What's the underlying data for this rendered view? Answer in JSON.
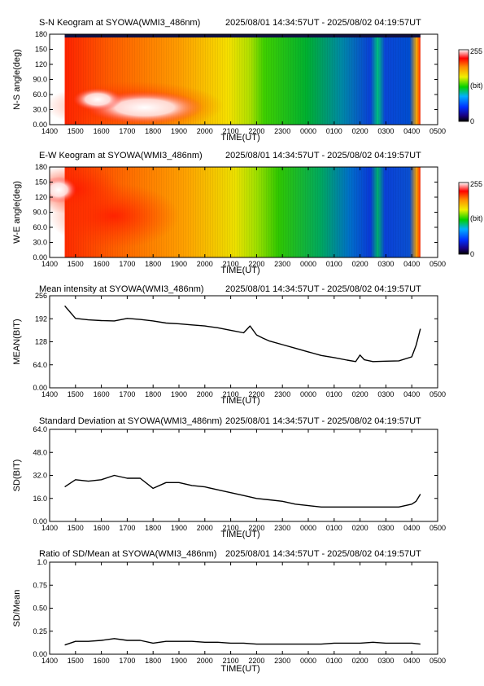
{
  "chart_data": [
    {
      "type": "heatmap",
      "title": "S-N Keogram at SYOWA(WMI3_486nm)",
      "time_range": "2025/08/01 14:34:57UT - 2025/08/02 04:19:57UT",
      "xlabel": "TIME(UT)",
      "ylabel": "N-S angle(deg)",
      "xticks": [
        "1400",
        "1500",
        "1600",
        "1700",
        "1800",
        "1900",
        "2000",
        "2100",
        "2200",
        "2300",
        "0000",
        "0100",
        "0200",
        "0300",
        "0400",
        "0500"
      ],
      "yticks": [
        "0.00",
        "30.0",
        "60.0",
        "90.0",
        "120",
        "150",
        "180"
      ],
      "ylim": [
        0,
        180
      ],
      "colorbar": {
        "min": "0",
        "max": "255",
        "unit": "(bit)"
      }
    },
    {
      "type": "heatmap",
      "title": "E-W Keogram at SYOWA(WMI3_486nm)",
      "time_range": "2025/08/01 14:34:57UT - 2025/08/02 04:19:57UT",
      "xlabel": "TIME(UT)",
      "ylabel": "W-E angle(deg)",
      "xticks": [
        "1400",
        "1500",
        "1600",
        "1700",
        "1800",
        "1900",
        "2000",
        "2100",
        "2200",
        "2300",
        "0000",
        "0100",
        "0200",
        "0300",
        "0400",
        "0500"
      ],
      "yticks": [
        "0.00",
        "30.0",
        "60.0",
        "90.0",
        "120",
        "150",
        "180"
      ],
      "ylim": [
        0,
        180
      ],
      "colorbar": {
        "min": "0",
        "max": "255",
        "unit": "(bit)"
      }
    },
    {
      "type": "line",
      "title": "Mean intensity at SYOWA(WMI3_486nm)",
      "time_range": "2025/08/01 14:34:57UT - 2025/08/02 04:19:57UT",
      "xlabel": "TIME(UT)",
      "ylabel": "MEAN(BIT)",
      "xticks": [
        "1400",
        "1500",
        "1600",
        "1700",
        "1800",
        "1900",
        "2000",
        "2100",
        "2200",
        "2300",
        "0000",
        "0100",
        "0200",
        "0300",
        "0400",
        "0500"
      ],
      "yticks": [
        "0.00",
        "64.0",
        "128",
        "192",
        "256"
      ],
      "ylim": [
        0,
        256
      ],
      "x": [
        "14:35",
        "15:00",
        "15:30",
        "16:00",
        "16:30",
        "17:00",
        "17:30",
        "18:00",
        "18:30",
        "19:00",
        "19:30",
        "20:00",
        "20:30",
        "21:00",
        "21:30",
        "21:45",
        "22:00",
        "22:15",
        "22:30",
        "23:00",
        "23:30",
        "00:00",
        "00:30",
        "01:00",
        "01:30",
        "01:50",
        "02:00",
        "02:10",
        "02:30",
        "03:00",
        "03:30",
        "04:00",
        "04:10",
        "04:20"
      ],
      "values": [
        228,
        193,
        189,
        187,
        186,
        193,
        190,
        186,
        180,
        178,
        175,
        172,
        167,
        160,
        153,
        172,
        147,
        138,
        130,
        120,
        110,
        100,
        90,
        84,
        77,
        73,
        91,
        78,
        73,
        74,
        75,
        86,
        118,
        164
      ]
    },
    {
      "type": "line",
      "title": "Standard Deviation at SYOWA(WMI3_486nm)",
      "time_range": "2025/08/01 14:34:57UT - 2025/08/02 04:19:57UT",
      "xlabel": "TIME(UT)",
      "ylabel": "SD(BIT)",
      "xticks": [
        "1400",
        "1500",
        "1600",
        "1700",
        "1800",
        "1900",
        "2000",
        "2100",
        "2200",
        "2300",
        "0000",
        "0100",
        "0200",
        "0300",
        "0400",
        "0500"
      ],
      "yticks": [
        "0.00",
        "16.0",
        "32.0",
        "48.0",
        "64.0"
      ],
      "ylim": [
        0,
        64
      ],
      "x": [
        "14:35",
        "15:00",
        "15:30",
        "16:00",
        "16:30",
        "17:00",
        "17:30",
        "18:00",
        "18:30",
        "19:00",
        "19:30",
        "20:00",
        "20:30",
        "21:00",
        "21:30",
        "22:00",
        "22:30",
        "23:00",
        "23:30",
        "00:00",
        "00:30",
        "01:00",
        "01:30",
        "02:00",
        "02:30",
        "03:00",
        "03:30",
        "04:00",
        "04:10",
        "04:20"
      ],
      "values": [
        24,
        29,
        28,
        29,
        32,
        30,
        30,
        23,
        27,
        27,
        25,
        24,
        22,
        20,
        18,
        16,
        15,
        14,
        12,
        11,
        10,
        10,
        10,
        10,
        10,
        10,
        10,
        12,
        14,
        19
      ]
    },
    {
      "type": "line",
      "title": "Ratio of SD/Mean at SYOWA(WMI3_486nm)",
      "time_range": "2025/08/01 14:34:57UT - 2025/08/02 04:19:57UT",
      "xlabel": "TIME(UT)",
      "ylabel": "SD/Mean",
      "xticks": [
        "1400",
        "1500",
        "1600",
        "1700",
        "1800",
        "1900",
        "2000",
        "2100",
        "2200",
        "2300",
        "0000",
        "0100",
        "0200",
        "0300",
        "0400",
        "0500"
      ],
      "yticks": [
        "0.00",
        "0.25",
        "0.50",
        "0.75",
        "1.0"
      ],
      "ylim": [
        0,
        1
      ],
      "x": [
        "14:35",
        "15:00",
        "15:30",
        "16:00",
        "16:30",
        "17:00",
        "17:30",
        "18:00",
        "18:30",
        "19:00",
        "19:30",
        "20:00",
        "20:30",
        "21:00",
        "21:30",
        "22:00",
        "22:30",
        "23:00",
        "23:30",
        "00:00",
        "00:30",
        "01:00",
        "01:30",
        "02:00",
        "02:30",
        "03:00",
        "03:30",
        "04:00",
        "04:20"
      ],
      "values": [
        0.1,
        0.14,
        0.14,
        0.15,
        0.17,
        0.15,
        0.15,
        0.12,
        0.14,
        0.14,
        0.14,
        0.13,
        0.13,
        0.12,
        0.12,
        0.11,
        0.11,
        0.11,
        0.11,
        0.11,
        0.11,
        0.12,
        0.12,
        0.12,
        0.13,
        0.12,
        0.12,
        0.12,
        0.11
      ]
    }
  ]
}
